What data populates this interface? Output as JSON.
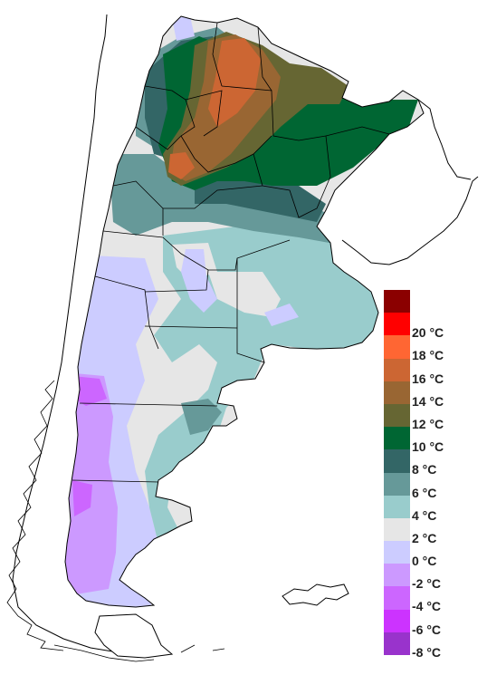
{
  "legend": {
    "entries": [
      {
        "color": "#8b0000",
        "label": ""
      },
      {
        "color": "#ff0000",
        "label": "20 °C"
      },
      {
        "color": "#ff6633",
        "label": "18 °C"
      },
      {
        "color": "#cc6633",
        "label": "16 °C"
      },
      {
        "color": "#996633",
        "label": "14 °C"
      },
      {
        "color": "#666633",
        "label": "12 °C"
      },
      {
        "color": "#006633",
        "label": "10 °C"
      },
      {
        "color": "#336666",
        "label": "8 °C"
      },
      {
        "color": "#669999",
        "label": "6 °C"
      },
      {
        "color": "#99cccc",
        "label": "4 °C"
      },
      {
        "color": "#e6e6e6",
        "label": "2 °C"
      },
      {
        "color": "#ccccff",
        "label": "0 °C"
      },
      {
        "color": "#cc99ff",
        "label": "-2 °C"
      },
      {
        "color": "#cc66ff",
        "label": "-4 °C"
      },
      {
        "color": "#cc33ff",
        "label": "-6 °C"
      },
      {
        "color": "#9933cc",
        "label": "-8 °C"
      }
    ]
  }
}
